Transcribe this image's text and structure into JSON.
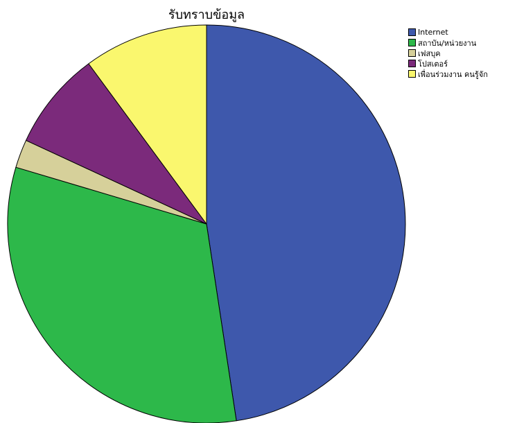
{
  "chart_data": {
    "type": "pie",
    "title": "รับทราบข้อมูล",
    "categories": [
      "Internet",
      "สถาบัน/หน่วยงาน",
      "เฟสบุค",
      "โปสเตอร์",
      "เพื่อนร่วมงาน คนรู้จัก"
    ],
    "values": [
      47.6,
      32.0,
      2.3,
      8.0,
      10.1
    ],
    "unit": "percent (estimated)",
    "colors": [
      "#3E58AC",
      "#2DB84A",
      "#D6D09A",
      "#7B2A7B",
      "#FAF76E"
    ],
    "start": "12 o'clock",
    "direction": "clockwise",
    "legend_position": "top-right"
  }
}
